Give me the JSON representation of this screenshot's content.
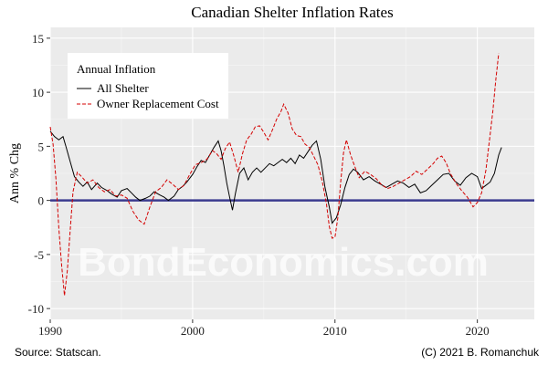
{
  "chart_data": {
    "type": "line",
    "title": "Canadian Shelter Inflation Rates",
    "xlabel": "",
    "ylabel": "Ann % Chg",
    "xlim": [
      1990,
      2024
    ],
    "ylim": [
      -11,
      16
    ],
    "x_ticks": [
      1990,
      2000,
      2010,
      2020
    ],
    "y_ticks": [
      -10,
      -5,
      0,
      5,
      10,
      15
    ],
    "grid": true,
    "legend": {
      "title": "Annual Inflation",
      "placement": "top-left",
      "entries": [
        "All Shelter",
        "Owner Replacement Cost"
      ]
    },
    "reference_line": {
      "y": 0,
      "color": "#3b3b8f"
    },
    "series": [
      {
        "name": "All Shelter",
        "color": "#000000",
        "style": "solid",
        "points": [
          [
            1990.0,
            6.4
          ],
          [
            1990.3,
            5.9
          ],
          [
            1990.6,
            5.6
          ],
          [
            1990.9,
            5.9
          ],
          [
            1991.1,
            5.0
          ],
          [
            1991.4,
            3.6
          ],
          [
            1991.7,
            2.2
          ],
          [
            1992.0,
            1.7
          ],
          [
            1992.3,
            1.3
          ],
          [
            1992.6,
            1.7
          ],
          [
            1992.9,
            1.0
          ],
          [
            1993.3,
            1.6
          ],
          [
            1993.6,
            1.2
          ],
          [
            1994.0,
            0.9
          ],
          [
            1994.3,
            0.6
          ],
          [
            1994.7,
            0.3
          ],
          [
            1995.0,
            0.9
          ],
          [
            1995.4,
            1.1
          ],
          [
            1995.7,
            0.7
          ],
          [
            1996.0,
            0.3
          ],
          [
            1996.3,
            0.0
          ],
          [
            1996.7,
            0.2
          ],
          [
            1997.0,
            0.4
          ],
          [
            1997.3,
            0.8
          ],
          [
            1997.7,
            0.5
          ],
          [
            1998.0,
            0.3
          ],
          [
            1998.3,
            0.0
          ],
          [
            1998.7,
            0.4
          ],
          [
            1999.0,
            1.0
          ],
          [
            1999.3,
            1.3
          ],
          [
            1999.6,
            1.7
          ],
          [
            2000.0,
            2.4
          ],
          [
            2000.3,
            3.1
          ],
          [
            2000.6,
            3.7
          ],
          [
            2000.9,
            3.5
          ],
          [
            2001.2,
            4.2
          ],
          [
            2001.5,
            4.9
          ],
          [
            2001.8,
            5.5
          ],
          [
            2002.0,
            4.6
          ],
          [
            2002.2,
            3.2
          ],
          [
            2002.4,
            1.6
          ],
          [
            2002.6,
            0.3
          ],
          [
            2002.8,
            -0.9
          ],
          [
            2003.0,
            0.6
          ],
          [
            2003.3,
            2.5
          ],
          [
            2003.6,
            3.0
          ],
          [
            2003.9,
            1.9
          ],
          [
            2004.2,
            2.6
          ],
          [
            2004.5,
            3.0
          ],
          [
            2004.8,
            2.6
          ],
          [
            2005.1,
            3.0
          ],
          [
            2005.4,
            3.4
          ],
          [
            2005.7,
            3.2
          ],
          [
            2006.0,
            3.5
          ],
          [
            2006.3,
            3.8
          ],
          [
            2006.6,
            3.5
          ],
          [
            2006.9,
            3.9
          ],
          [
            2007.2,
            3.4
          ],
          [
            2007.5,
            4.2
          ],
          [
            2007.8,
            3.9
          ],
          [
            2008.1,
            4.5
          ],
          [
            2008.4,
            5.1
          ],
          [
            2008.7,
            5.5
          ],
          [
            2009.0,
            3.8
          ],
          [
            2009.3,
            1.2
          ],
          [
            2009.6,
            -0.6
          ],
          [
            2009.8,
            -2.1
          ],
          [
            2010.1,
            -1.6
          ],
          [
            2010.4,
            -0.4
          ],
          [
            2010.7,
            1.2
          ],
          [
            2011.0,
            2.4
          ],
          [
            2011.3,
            2.9
          ],
          [
            2011.6,
            2.6
          ],
          [
            2012.0,
            1.9
          ],
          [
            2012.4,
            2.2
          ],
          [
            2012.8,
            1.8
          ],
          [
            2013.2,
            1.5
          ],
          [
            2013.6,
            1.2
          ],
          [
            2014.0,
            1.5
          ],
          [
            2014.4,
            1.8
          ],
          [
            2014.8,
            1.6
          ],
          [
            2015.2,
            1.2
          ],
          [
            2015.6,
            1.5
          ],
          [
            2016.0,
            0.7
          ],
          [
            2016.4,
            0.9
          ],
          [
            2016.8,
            1.4
          ],
          [
            2017.2,
            1.9
          ],
          [
            2017.6,
            2.4
          ],
          [
            2018.0,
            2.5
          ],
          [
            2018.4,
            1.8
          ],
          [
            2018.8,
            1.4
          ],
          [
            2019.2,
            2.1
          ],
          [
            2019.6,
            2.5
          ],
          [
            2020.0,
            2.2
          ],
          [
            2020.3,
            1.1
          ],
          [
            2020.6,
            1.4
          ],
          [
            2020.9,
            1.7
          ],
          [
            2021.2,
            2.5
          ],
          [
            2021.5,
            4.2
          ],
          [
            2021.7,
            4.9
          ]
        ]
      },
      {
        "name": "Owner Replacement Cost",
        "color": "#d40000",
        "style": "dashed",
        "points": [
          [
            1990.0,
            6.8
          ],
          [
            1990.2,
            5.2
          ],
          [
            1990.4,
            2.0
          ],
          [
            1990.6,
            -2.5
          ],
          [
            1990.8,
            -6.0
          ],
          [
            1991.0,
            -8.8
          ],
          [
            1991.2,
            -6.5
          ],
          [
            1991.4,
            -2.8
          ],
          [
            1991.6,
            0.8
          ],
          [
            1991.9,
            2.6
          ],
          [
            1992.2,
            2.2
          ],
          [
            1992.6,
            1.6
          ],
          [
            1993.0,
            1.9
          ],
          [
            1993.4,
            1.2
          ],
          [
            1993.8,
            0.8
          ],
          [
            1994.2,
            1.0
          ],
          [
            1994.6,
            0.4
          ],
          [
            1995.0,
            0.5
          ],
          [
            1995.4,
            0.2
          ],
          [
            1995.8,
            -1.0
          ],
          [
            1996.2,
            -1.8
          ],
          [
            1996.6,
            -2.2
          ],
          [
            1997.0,
            -0.6
          ],
          [
            1997.4,
            0.8
          ],
          [
            1997.8,
            1.2
          ],
          [
            1998.2,
            1.9
          ],
          [
            1998.6,
            1.5
          ],
          [
            1999.0,
            1.0
          ],
          [
            1999.4,
            1.4
          ],
          [
            1999.8,
            2.4
          ],
          [
            2000.2,
            3.3
          ],
          [
            2000.6,
            3.5
          ],
          [
            2001.0,
            3.8
          ],
          [
            2001.4,
            4.6
          ],
          [
            2001.7,
            4.3
          ],
          [
            2002.0,
            3.8
          ],
          [
            2002.3,
            4.8
          ],
          [
            2002.6,
            5.4
          ],
          [
            2002.9,
            4.1
          ],
          [
            2003.2,
            2.6
          ],
          [
            2003.5,
            4.3
          ],
          [
            2003.8,
            5.6
          ],
          [
            2004.1,
            6.1
          ],
          [
            2004.4,
            6.8
          ],
          [
            2004.7,
            6.9
          ],
          [
            2005.0,
            6.3
          ],
          [
            2005.3,
            5.6
          ],
          [
            2005.6,
            6.5
          ],
          [
            2005.9,
            7.5
          ],
          [
            2006.2,
            8.2
          ],
          [
            2006.4,
            8.9
          ],
          [
            2006.7,
            8.1
          ],
          [
            2007.0,
            6.6
          ],
          [
            2007.3,
            6.0
          ],
          [
            2007.6,
            5.9
          ],
          [
            2007.9,
            5.2
          ],
          [
            2008.2,
            4.9
          ],
          [
            2008.5,
            4.1
          ],
          [
            2008.8,
            3.3
          ],
          [
            2009.1,
            1.8
          ],
          [
            2009.4,
            -0.3
          ],
          [
            2009.6,
            -2.4
          ],
          [
            2009.8,
            -3.5
          ],
          [
            2010.0,
            -3.4
          ],
          [
            2010.2,
            -1.6
          ],
          [
            2010.4,
            1.7
          ],
          [
            2010.6,
            4.4
          ],
          [
            2010.8,
            5.6
          ],
          [
            2011.1,
            4.2
          ],
          [
            2011.4,
            3.1
          ],
          [
            2011.7,
            2.1
          ],
          [
            2012.1,
            2.7
          ],
          [
            2012.5,
            2.4
          ],
          [
            2012.9,
            2.0
          ],
          [
            2013.3,
            1.4
          ],
          [
            2013.7,
            1.1
          ],
          [
            2014.1,
            1.3
          ],
          [
            2014.5,
            1.6
          ],
          [
            2014.9,
            1.9
          ],
          [
            2015.3,
            2.2
          ],
          [
            2015.7,
            2.7
          ],
          [
            2016.1,
            2.4
          ],
          [
            2016.5,
            2.9
          ],
          [
            2016.9,
            3.4
          ],
          [
            2017.2,
            3.9
          ],
          [
            2017.5,
            4.1
          ],
          [
            2017.8,
            3.5
          ],
          [
            2018.1,
            2.5
          ],
          [
            2018.5,
            1.6
          ],
          [
            2018.9,
            0.9
          ],
          [
            2019.3,
            0.3
          ],
          [
            2019.7,
            -0.6
          ],
          [
            2020.0,
            -0.2
          ],
          [
            2020.3,
            0.7
          ],
          [
            2020.6,
            2.8
          ],
          [
            2020.9,
            6.1
          ],
          [
            2021.1,
            8.4
          ],
          [
            2021.3,
            11.2
          ],
          [
            2021.5,
            13.6
          ]
        ]
      }
    ]
  },
  "footer": {
    "source": "Source: Statscan.",
    "credit": "(C) 2021 B. Romanchuk"
  },
  "watermark": "BondEconomics.com"
}
